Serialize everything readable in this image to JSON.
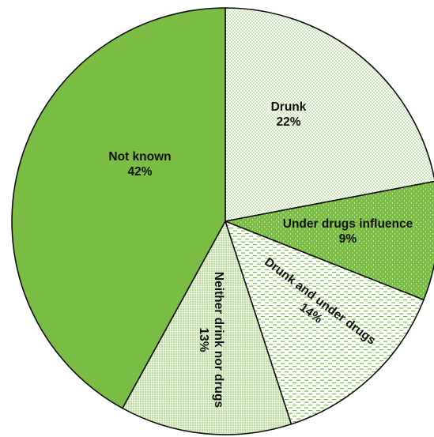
{
  "chart_data": {
    "type": "pie",
    "title": "",
    "slices": [
      {
        "label": "Drunk",
        "value": 22,
        "value_label": "22%",
        "fill": "dots-light"
      },
      {
        "label": "Under drugs influence",
        "value": 9,
        "value_label": "9%",
        "fill": "dots-solid"
      },
      {
        "label": "Drunk and under drugs",
        "value": 14,
        "value_label": "14%",
        "fill": "dashes"
      },
      {
        "label": "Neither drink nor drugs",
        "value": 13,
        "value_label": "13%",
        "fill": "dots-fine"
      },
      {
        "label": "Not known",
        "value": 42,
        "value_label": "42%",
        "fill": "solid"
      }
    ],
    "start": "12 o'clock",
    "direction": "clockwise",
    "legend": "none",
    "colors": {
      "green": "#79bd44",
      "pale_green": "#eaf3df",
      "outline": "#111111"
    }
  }
}
